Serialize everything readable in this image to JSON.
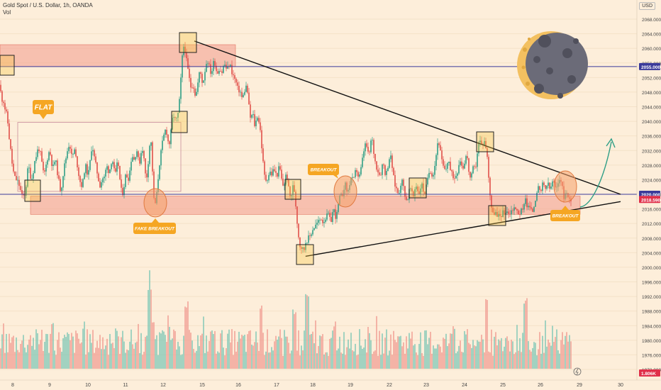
{
  "header": {
    "symbol_line": "Gold Spot / U.S. Dollar, 1h, OANDA",
    "volume_label": "Vol"
  },
  "currency": "USD",
  "colors": {
    "background": "#fdeeda",
    "bull": "#2e9e86",
    "bear": "#e0504a",
    "zone_fill": "#f39a8c",
    "level_line": "#3a3a9a",
    "label_orange": "#f5a623",
    "moon_dark": "#6b6b78",
    "moon_light": "#f3c060"
  },
  "chart_data": {
    "type": "candlestick",
    "x_ticks": [
      "8",
      "9",
      "10",
      "11",
      "12",
      "15",
      "16",
      "17",
      "18",
      "19",
      "22",
      "23",
      "24",
      "25",
      "26",
      "29",
      "30"
    ],
    "y_ticks": [
      "2068.000",
      "2064.000",
      "2060.000",
      "2056.000",
      "2052.000",
      "2048.000",
      "2044.000",
      "2040.000",
      "2036.000",
      "2032.000",
      "2028.000",
      "2024.000",
      "2020.000",
      "2016.000",
      "2012.000",
      "2008.000",
      "2004.000",
      "2000.000",
      "1996.000",
      "1992.000",
      "1988.000",
      "1984.000",
      "1980.000",
      "1976.000",
      "1972.000"
    ],
    "ylim": [
      1970,
      2070
    ],
    "price_tags": [
      {
        "label": "2055.000",
        "value": 2055,
        "color": "#3a3a9a"
      },
      {
        "label": "2020.000",
        "value": 2020,
        "color": "#3a3a9a"
      },
      {
        "label": "2018.590",
        "value": 2018.59,
        "color": "#e0304a"
      },
      {
        "label": "1.806K",
        "value": 1806,
        "color": "#e0304a"
      }
    ],
    "horizontal_lines": [
      2055,
      2020
    ],
    "zones": [
      {
        "from": 2055,
        "to": 2061
      },
      {
        "from": 2014.5,
        "to": 2019.5
      }
    ],
    "flat_range": {
      "from": 2020.8,
      "to": 2039.7
    },
    "trendlines": [
      {
        "from": [
          "12.8",
          2062
        ],
        "to": [
          "30",
          2020
        ]
      },
      {
        "from": [
          "17.8",
          2003
        ],
        "to": [
          "30",
          2018
        ]
      }
    ],
    "close_path": [
      [
        0,
        2050
      ],
      [
        2,
        2046
      ],
      [
        4,
        2046
      ],
      [
        6,
        2045
      ],
      [
        8,
        2042
      ],
      [
        10,
        2042
      ],
      [
        12,
        2037
      ],
      [
        14,
        2034
      ],
      [
        16,
        2030
      ],
      [
        18,
        2027
      ],
      [
        20,
        2025
      ],
      [
        22,
        2024
      ],
      [
        24,
        2024
      ],
      [
        26,
        2023
      ],
      [
        28,
        2022
      ],
      [
        30,
        2020
      ],
      [
        32,
        2019
      ],
      [
        34,
        2020
      ],
      [
        36,
        2020
      ],
      [
        38,
        2025
      ],
      [
        40,
        2028
      ],
      [
        42,
        2026
      ],
      [
        44,
        2024
      ],
      [
        46,
        2025
      ],
      [
        48,
        2028
      ],
      [
        50,
        2030
      ],
      [
        52,
        2031
      ],
      [
        54,
        2033
      ],
      [
        56,
        2032
      ],
      [
        58,
        2030
      ],
      [
        60,
        2027
      ],
      [
        62,
        2025
      ],
      [
        64,
        2027
      ],
      [
        66,
        2029
      ],
      [
        68,
        2031
      ],
      [
        70,
        2032
      ],
      [
        72,
        2030
      ],
      [
        74,
        2027
      ],
      [
        76,
        2028
      ],
      [
        78,
        2030
      ],
      [
        80,
        2027
      ],
      [
        82,
        2025
      ],
      [
        84,
        2022
      ],
      [
        86,
        2021
      ],
      [
        88,
        2024
      ],
      [
        90,
        2027
      ],
      [
        92,
        2029
      ],
      [
        94,
        2031
      ],
      [
        96,
        2033
      ],
      [
        98,
        2034
      ],
      [
        100,
        2032
      ],
      [
        102,
        2029
      ],
      [
        104,
        2033
      ],
      [
        106,
        2031
      ],
      [
        108,
        2029
      ],
      [
        110,
        2027
      ],
      [
        112,
        2024
      ],
      [
        114,
        2023
      ],
      [
        116,
        2022
      ],
      [
        118,
        2025
      ],
      [
        120,
        2028
      ],
      [
        122,
        2027
      ],
      [
        124,
        2025
      ],
      [
        126,
        2027
      ],
      [
        128,
        2031
      ],
      [
        130,
        2034
      ],
      [
        132,
        2031
      ],
      [
        134,
        2029
      ],
      [
        136,
        2027
      ],
      [
        138,
        2025
      ],
      [
        140,
        2023
      ],
      [
        142,
        2022
      ],
      [
        144,
        2025
      ],
      [
        146,
        2024
      ],
      [
        148,
        2025
      ],
      [
        150,
        2028
      ],
      [
        152,
        2027
      ],
      [
        154,
        2026
      ],
      [
        156,
        2028
      ],
      [
        158,
        2030
      ],
      [
        160,
        2028
      ],
      [
        162,
        2025
      ],
      [
        164,
        2026
      ],
      [
        166,
        2030
      ],
      [
        168,
        2026
      ],
      [
        170,
        2022
      ],
      [
        172,
        2020
      ],
      [
        174,
        2021
      ],
      [
        176,
        2024
      ],
      [
        178,
        2026
      ],
      [
        180,
        2024
      ],
      [
        182,
        2025
      ],
      [
        184,
        2028
      ],
      [
        186,
        2031
      ],
      [
        188,
        2030
      ],
      [
        190,
        2029
      ],
      [
        192,
        2033
      ],
      [
        194,
        2031
      ],
      [
        196,
        2028
      ],
      [
        198,
        2030
      ],
      [
        200,
        2033
      ],
      [
        202,
        2032
      ],
      [
        204,
        2027
      ],
      [
        206,
        2024
      ],
      [
        208,
        2026
      ],
      [
        210,
        2032
      ],
      [
        212,
        2035
      ],
      [
        214,
        2033
      ],
      [
        216,
        2020
      ],
      [
        218,
        2017
      ],
      [
        220,
        2018
      ],
      [
        222,
        2022
      ],
      [
        224,
        2027
      ],
      [
        226,
        2030
      ],
      [
        228,
        2033
      ],
      [
        230,
        2035
      ],
      [
        232,
        2037
      ],
      [
        234,
        2038
      ],
      [
        236,
        2036
      ],
      [
        238,
        2033
      ],
      [
        240,
        2035
      ],
      [
        242,
        2039
      ],
      [
        244,
        2042
      ],
      [
        246,
        2041
      ],
      [
        248,
        2040
      ],
      [
        250,
        2041
      ],
      [
        252,
        2043
      ],
      [
        254,
        2048
      ],
      [
        256,
        2055
      ],
      [
        258,
        2060
      ],
      [
        260,
        2061
      ],
      [
        262,
        2058
      ],
      [
        264,
        2055
      ],
      [
        266,
        2053
      ],
      [
        268,
        2050
      ],
      [
        270,
        2049
      ],
      [
        272,
        2051
      ],
      [
        274,
        2048
      ],
      [
        276,
        2047
      ],
      [
        278,
        2049
      ],
      [
        280,
        2052
      ],
      [
        282,
        2054
      ],
      [
        284,
        2052
      ],
      [
        286,
        2050
      ],
      [
        288,
        2053
      ],
      [
        290,
        2055
      ],
      [
        292,
        2057
      ],
      [
        294,
        2056
      ],
      [
        296,
        2054
      ],
      [
        298,
        2053
      ],
      [
        300,
        2055
      ],
      [
        302,
        2057
      ],
      [
        304,
        2055
      ],
      [
        306,
        2053
      ],
      [
        308,
        2054
      ],
      [
        310,
        2055
      ],
      [
        312,
        2053
      ],
      [
        314,
        2054
      ],
      [
        316,
        2056
      ],
      [
        318,
        2055
      ],
      [
        320,
        2054
      ],
      [
        322,
        2055
      ],
      [
        324,
        2056
      ],
      [
        326,
        2054
      ],
      [
        328,
        2053
      ],
      [
        330,
        2052
      ],
      [
        332,
        2051
      ],
      [
        334,
        2050
      ],
      [
        336,
        2048
      ],
      [
        338,
        2049
      ],
      [
        340,
        2047
      ],
      [
        342,
        2046
      ],
      [
        344,
        2048
      ],
      [
        346,
        2049
      ],
      [
        348,
        2050
      ],
      [
        350,
        2046
      ],
      [
        352,
        2042
      ],
      [
        354,
        2040
      ],
      [
        356,
        2043
      ],
      [
        358,
        2040
      ],
      [
        360,
        2038
      ],
      [
        362,
        2042
      ],
      [
        364,
        2041
      ],
      [
        366,
        2039
      ],
      [
        368,
        2036
      ],
      [
        370,
        2030
      ],
      [
        372,
        2027
      ],
      [
        374,
        2023
      ],
      [
        376,
        2025
      ],
      [
        378,
        2024
      ],
      [
        380,
        2027
      ],
      [
        382,
        2025
      ],
      [
        384,
        2026
      ],
      [
        386,
        2027
      ],
      [
        388,
        2026
      ],
      [
        390,
        2025
      ],
      [
        392,
        2026
      ],
      [
        394,
        2028
      ],
      [
        396,
        2025
      ],
      [
        398,
        2023
      ],
      [
        400,
        2022
      ],
      [
        402,
        2024
      ],
      [
        404,
        2026
      ],
      [
        406,
        2023
      ],
      [
        408,
        2020
      ],
      [
        410,
        2019
      ],
      [
        412,
        2021
      ],
      [
        414,
        2023
      ],
      [
        416,
        2019
      ],
      [
        418,
        2015
      ],
      [
        420,
        2010
      ],
      [
        422,
        2007
      ],
      [
        424,
        2005
      ],
      [
        426,
        2006
      ],
      [
        428,
        2004
      ],
      [
        430,
        2006
      ],
      [
        432,
        2008
      ],
      [
        434,
        2007
      ],
      [
        436,
        2009
      ],
      [
        438,
        2008
      ],
      [
        440,
        2011
      ],
      [
        442,
        2010
      ],
      [
        444,
        2012
      ],
      [
        446,
        2011
      ],
      [
        448,
        2013
      ],
      [
        450,
        2012
      ],
      [
        452,
        2014
      ],
      [
        454,
        2013
      ],
      [
        456,
        2012
      ],
      [
        458,
        2014
      ],
      [
        460,
        2013
      ],
      [
        462,
        2015
      ],
      [
        464,
        2014
      ],
      [
        466,
        2012
      ],
      [
        468,
        2014
      ],
      [
        470,
        2016
      ],
      [
        472,
        2015
      ],
      [
        474,
        2013
      ],
      [
        476,
        2016
      ],
      [
        478,
        2018
      ],
      [
        480,
        2020
      ],
      [
        482,
        2019
      ],
      [
        484,
        2021
      ],
      [
        486,
        2023
      ],
      [
        488,
        2022
      ],
      [
        490,
        2020
      ],
      [
        492,
        2022
      ],
      [
        494,
        2024
      ],
      [
        496,
        2025
      ],
      [
        498,
        2023
      ],
      [
        500,
        2025
      ],
      [
        502,
        2027
      ],
      [
        504,
        2026
      ],
      [
        506,
        2024
      ],
      [
        508,
        2026
      ],
      [
        510,
        2028
      ],
      [
        512,
        2031
      ],
      [
        514,
        2033
      ],
      [
        516,
        2034
      ],
      [
        518,
        2032
      ],
      [
        520,
        2030
      ],
      [
        522,
        2033
      ],
      [
        524,
        2036
      ],
      [
        526,
        2033
      ],
      [
        528,
        2030
      ],
      [
        530,
        2028
      ],
      [
        532,
        2027
      ],
      [
        534,
        2026
      ],
      [
        536,
        2025
      ],
      [
        538,
        2027
      ],
      [
        540,
        2029
      ],
      [
        542,
        2027
      ],
      [
        544,
        2025
      ],
      [
        546,
        2027
      ],
      [
        548,
        2029
      ],
      [
        550,
        2031
      ],
      [
        552,
        2029
      ],
      [
        554,
        2026
      ],
      [
        556,
        2023
      ],
      [
        558,
        2022
      ],
      [
        560,
        2021
      ],
      [
        562,
        2020
      ],
      [
        564,
        2022
      ],
      [
        566,
        2024
      ],
      [
        568,
        2023
      ],
      [
        570,
        2021
      ],
      [
        572,
        2019
      ],
      [
        574,
        2018
      ],
      [
        576,
        2020
      ],
      [
        578,
        2022
      ],
      [
        580,
        2021
      ],
      [
        582,
        2019
      ],
      [
        584,
        2020
      ],
      [
        586,
        2023
      ],
      [
        588,
        2022
      ],
      [
        590,
        2020
      ],
      [
        592,
        2021
      ],
      [
        594,
        2023
      ],
      [
        596,
        2022
      ],
      [
        598,
        2020
      ],
      [
        600,
        2021
      ],
      [
        602,
        2023
      ],
      [
        604,
        2025
      ],
      [
        606,
        2027
      ],
      [
        608,
        2026
      ],
      [
        610,
        2025
      ],
      [
        612,
        2027
      ],
      [
        614,
        2029
      ],
      [
        616,
        2033
      ],
      [
        618,
        2035
      ],
      [
        620,
        2033
      ],
      [
        622,
        2030
      ],
      [
        624,
        2028
      ],
      [
        626,
        2027
      ],
      [
        628,
        2026
      ],
      [
        630,
        2028
      ],
      [
        632,
        2030
      ],
      [
        634,
        2028
      ],
      [
        636,
        2025
      ],
      [
        638,
        2026
      ],
      [
        640,
        2024
      ],
      [
        642,
        2025
      ],
      [
        644,
        2026
      ],
      [
        646,
        2027
      ],
      [
        648,
        2030
      ],
      [
        650,
        2029
      ],
      [
        652,
        2027
      ],
      [
        654,
        2028
      ],
      [
        656,
        2030
      ],
      [
        658,
        2031
      ],
      [
        660,
        2028
      ],
      [
        662,
        2025
      ],
      [
        664,
        2024
      ],
      [
        666,
        2026
      ],
      [
        668,
        2028
      ],
      [
        670,
        2026
      ],
      [
        672,
        2030
      ],
      [
        674,
        2033
      ],
      [
        676,
        2035
      ],
      [
        678,
        2034
      ],
      [
        680,
        2033
      ],
      [
        682,
        2035
      ],
      [
        684,
        2034
      ],
      [
        686,
        2032
      ],
      [
        688,
        2028
      ],
      [
        690,
        2022
      ],
      [
        692,
        2018
      ],
      [
        694,
        2015
      ],
      [
        696,
        2014
      ],
      [
        698,
        2016
      ],
      [
        700,
        2014
      ],
      [
        702,
        2013
      ],
      [
        704,
        2015
      ],
      [
        706,
        2013
      ],
      [
        708,
        2016
      ],
      [
        710,
        2014
      ],
      [
        712,
        2015
      ],
      [
        714,
        2016
      ],
      [
        716,
        2015
      ],
      [
        718,
        2014
      ],
      [
        720,
        2016
      ],
      [
        722,
        2015
      ],
      [
        724,
        2017
      ],
      [
        726,
        2016
      ],
      [
        728,
        2015
      ],
      [
        730,
        2016
      ],
      [
        732,
        2014
      ],
      [
        734,
        2016
      ],
      [
        736,
        2015
      ],
      [
        738,
        2016
      ],
      [
        740,
        2020
      ],
      [
        742,
        2018
      ],
      [
        744,
        2016
      ],
      [
        746,
        2017
      ],
      [
        748,
        2016
      ],
      [
        750,
        2015
      ],
      [
        752,
        2016
      ],
      [
        754,
        2018
      ],
      [
        756,
        2020
      ],
      [
        758,
        2022
      ],
      [
        760,
        2021
      ],
      [
        762,
        2020
      ],
      [
        764,
        2022
      ],
      [
        766,
        2023
      ],
      [
        768,
        2021
      ],
      [
        770,
        2022
      ],
      [
        772,
        2023
      ],
      [
        774,
        2022
      ],
      [
        776,
        2021
      ],
      [
        778,
        2023
      ],
      [
        780,
        2024
      ],
      [
        782,
        2022
      ],
      [
        784,
        2021
      ],
      [
        786,
        2022
      ],
      [
        788,
        2024
      ],
      [
        790,
        2025
      ],
      [
        792,
        2023
      ],
      [
        794,
        2020
      ],
      [
        796,
        2019
      ],
      [
        798,
        2021
      ],
      [
        800,
        2020
      ],
      [
        802,
        2018
      ],
      [
        804,
        2019
      ],
      [
        806,
        2018.59
      ]
    ]
  },
  "annotations": {
    "flat": "FLAT",
    "fake_breakout": "FAKE BREAKOUT",
    "breakout_left": "BREAKOUT",
    "breakout_right": "BREAKOUT"
  }
}
